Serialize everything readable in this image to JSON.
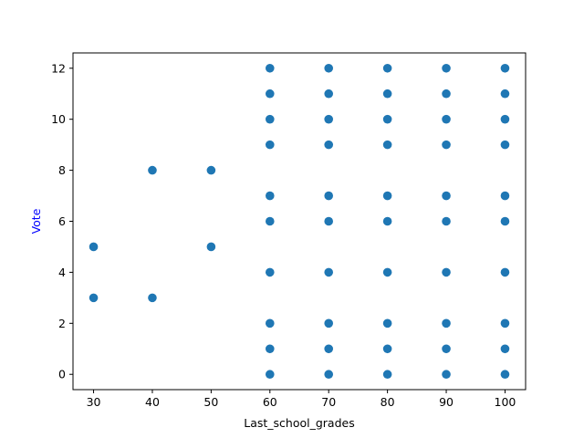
{
  "chart_data": {
    "type": "scatter",
    "title": "",
    "xlabel": "Last_school_grades",
    "ylabel": "Vote",
    "xlabel_color": "#000000",
    "ylabel_color": "#0000ff",
    "marker_color": "#1f77b4",
    "xlim": [
      26.5,
      103.5
    ],
    "ylim": [
      -0.6,
      12.6
    ],
    "xticks": [
      30,
      40,
      50,
      60,
      70,
      80,
      90,
      100
    ],
    "yticks": [
      0,
      2,
      4,
      6,
      8,
      10,
      12
    ],
    "grid": false,
    "legend": "none",
    "points": [
      {
        "x": 30,
        "y": 3
      },
      {
        "x": 30,
        "y": 5
      },
      {
        "x": 40,
        "y": 3
      },
      {
        "x": 40,
        "y": 8
      },
      {
        "x": 50,
        "y": 5
      },
      {
        "x": 50,
        "y": 8
      },
      {
        "x": 60,
        "y": 0
      },
      {
        "x": 60,
        "y": 1
      },
      {
        "x": 60,
        "y": 2
      },
      {
        "x": 60,
        "y": 4
      },
      {
        "x": 60,
        "y": 6
      },
      {
        "x": 60,
        "y": 7
      },
      {
        "x": 60,
        "y": 9
      },
      {
        "x": 60,
        "y": 10
      },
      {
        "x": 60,
        "y": 11
      },
      {
        "x": 60,
        "y": 12
      },
      {
        "x": 70,
        "y": 0
      },
      {
        "x": 70,
        "y": 1
      },
      {
        "x": 70,
        "y": 2
      },
      {
        "x": 70,
        "y": 4
      },
      {
        "x": 70,
        "y": 6
      },
      {
        "x": 70,
        "y": 7
      },
      {
        "x": 70,
        "y": 9
      },
      {
        "x": 70,
        "y": 10
      },
      {
        "x": 70,
        "y": 11
      },
      {
        "x": 70,
        "y": 12
      },
      {
        "x": 80,
        "y": 0
      },
      {
        "x": 80,
        "y": 1
      },
      {
        "x": 80,
        "y": 2
      },
      {
        "x": 80,
        "y": 4
      },
      {
        "x": 80,
        "y": 6
      },
      {
        "x": 80,
        "y": 7
      },
      {
        "x": 80,
        "y": 9
      },
      {
        "x": 80,
        "y": 10
      },
      {
        "x": 80,
        "y": 11
      },
      {
        "x": 80,
        "y": 12
      },
      {
        "x": 90,
        "y": 0
      },
      {
        "x": 90,
        "y": 1
      },
      {
        "x": 90,
        "y": 2
      },
      {
        "x": 90,
        "y": 4
      },
      {
        "x": 90,
        "y": 6
      },
      {
        "x": 90,
        "y": 7
      },
      {
        "x": 90,
        "y": 9
      },
      {
        "x": 90,
        "y": 10
      },
      {
        "x": 90,
        "y": 11
      },
      {
        "x": 90,
        "y": 12
      },
      {
        "x": 100,
        "y": 0
      },
      {
        "x": 100,
        "y": 1
      },
      {
        "x": 100,
        "y": 2
      },
      {
        "x": 100,
        "y": 4
      },
      {
        "x": 100,
        "y": 6
      },
      {
        "x": 100,
        "y": 7
      },
      {
        "x": 100,
        "y": 9
      },
      {
        "x": 100,
        "y": 10
      },
      {
        "x": 100,
        "y": 11
      },
      {
        "x": 100,
        "y": 12
      }
    ]
  }
}
